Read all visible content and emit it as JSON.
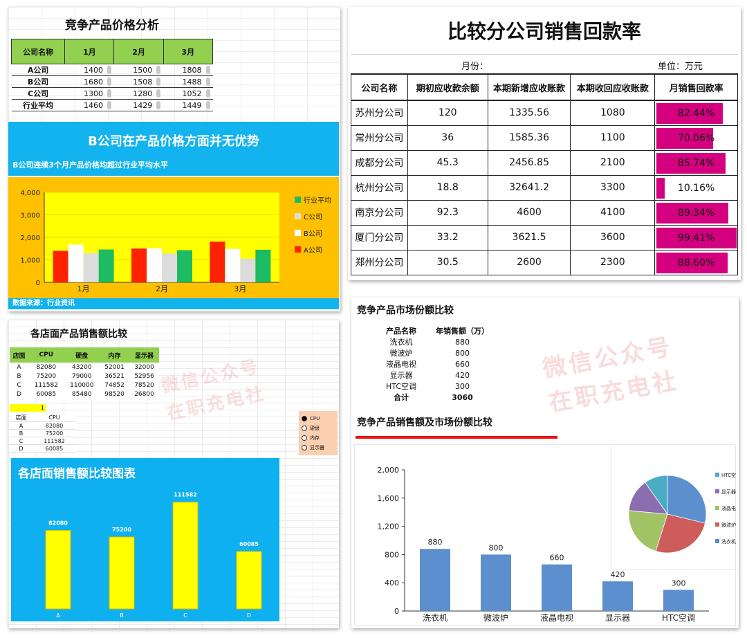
{
  "price_panel": {
    "title": "竞争产品价格分析",
    "headers": [
      "公司名称",
      "1月",
      "2月",
      "3月"
    ],
    "rows": [
      {
        "name": "A公司",
        "values": [
          "1400",
          "1500",
          "1808"
        ]
      },
      {
        "name": "B公司",
        "values": [
          "1680",
          "1508",
          "1488"
        ]
      },
      {
        "name": "C公司",
        "values": [
          "1300",
          "1280",
          "1052"
        ]
      },
      {
        "name": "行业平均",
        "values": [
          "1460",
          "1429",
          "1449"
        ]
      }
    ],
    "banner_title": "B公司在产品价格方面并无优势",
    "banner_sub": "B公司连续3个月产品价格均超过行业平均水平",
    "source": "数据来源：行业资讯",
    "colors": {
      "A公司": "#ff2200",
      "B公司": "#ffffff",
      "C公司": "#dcdcdc",
      "行业平均": "#1dbb62",
      "plot_bg": "#ffff00",
      "chart_bg": "#ffc000",
      "banner": "#12b3ef"
    }
  },
  "rate_panel": {
    "title": "比较分公司销售回款率",
    "month_label": "月份：",
    "unit_label": "单位：万元",
    "headers": [
      "公司名称",
      "期初应收款余额",
      "本期新增应收账款",
      "本期收回应收账款",
      "月销售回款率"
    ],
    "rows": [
      {
        "name": "苏州分公司",
        "opening": "120",
        "new": "1335.56",
        "collected": "1080",
        "rate_text": "82.44%",
        "rate": 0.8244
      },
      {
        "name": "常州分公司",
        "opening": "36",
        "new": "1585.36",
        "collected": "1100",
        "rate_text": "70.06%",
        "rate": 0.7006
      },
      {
        "name": "成都分公司",
        "opening": "45.3",
        "new": "2456.85",
        "collected": "2100",
        "rate_text": "85.74%",
        "rate": 0.8574
      },
      {
        "name": "杭州分公司",
        "opening": "18.8",
        "new": "32641.2",
        "collected": "3300",
        "rate_text": "10.16%",
        "rate": 0.1016
      },
      {
        "name": "南京分公司",
        "opening": "92.3",
        "new": "4600",
        "collected": "4100",
        "rate_text": "89.34%",
        "rate": 0.8934
      },
      {
        "name": "厦门分公司",
        "opening": "33.2",
        "new": "3621.5",
        "collected": "3600",
        "rate_text": "99.41%",
        "rate": 0.9941
      },
      {
        "name": "郑州分公司",
        "opening": "30.5",
        "new": "2600",
        "collected": "2300",
        "rate_text": "88.60%",
        "rate": 0.886
      }
    ],
    "bar_color": "#d4007f"
  },
  "store_panel": {
    "title": "各店面产品销售额比较",
    "headers": [
      "店面",
      "CPU",
      "硬盘",
      "内存",
      "显示器"
    ],
    "rows": [
      [
        "A",
        "82080",
        "43200",
        "52001",
        "32000"
      ],
      [
        "B",
        "75200",
        "79000",
        "36521",
        "52956"
      ],
      [
        "C",
        "111582",
        "110000",
        "74852",
        "78520"
      ],
      [
        "D",
        "60085",
        "85480",
        "98520",
        "26800"
      ]
    ],
    "selected_index": "1",
    "sub_headers": [
      "店面",
      "CPU"
    ],
    "sub_rows": [
      [
        "A",
        "82080"
      ],
      [
        "B",
        "75200"
      ],
      [
        "C",
        "111582"
      ],
      [
        "D",
        "60085"
      ]
    ],
    "options": [
      "CPU",
      "硬盘",
      "内存",
      "显示器"
    ],
    "selected_option": "CPU",
    "chart_title": "各店面销售额比较图表",
    "watermark": [
      "微信公众号",
      "在职充电社"
    ]
  },
  "share_panel": {
    "title": "竞争产品市场份额比较",
    "headers": [
      "产品名称",
      "年销售额（万）"
    ],
    "rows": [
      [
        "洗衣机",
        "880"
      ],
      [
        "微波炉",
        "800"
      ],
      [
        "液晶电视",
        "660"
      ],
      [
        "显示器",
        "420"
      ],
      [
        "HTC空调",
        "300"
      ]
    ],
    "total": [
      "合计",
      "3060"
    ],
    "chart_title": "竞争产品销售额及市场份额比较",
    "watermark": [
      "微信公众号",
      "在职充电社"
    ],
    "pie_legend": [
      "HTC空",
      "显示器",
      "液晶电",
      "微波炉",
      "洗衣机"
    ],
    "pie_colors": {
      "洗衣机": "#5b8fce",
      "微波炉": "#cd5c5a",
      "液晶电视": "#a2c266",
      "显示器": "#8a6eb0",
      "HTC空调": "#4bacc6"
    },
    "bar_color": "#5b8fce"
  },
  "chart_data": [
    {
      "type": "bar",
      "categories": [
        "1月",
        "2月",
        "3月"
      ],
      "series": [
        {
          "name": "A公司",
          "values": [
            1400,
            1500,
            1808
          ]
        },
        {
          "name": "B公司",
          "values": [
            1680,
            1508,
            1488
          ]
        },
        {
          "name": "C公司",
          "values": [
            1300,
            1280,
            1052
          ]
        },
        {
          "name": "行业平均",
          "values": [
            1460,
            1429,
            1449
          ]
        }
      ],
      "yticks": [
        "0",
        "1,000",
        "2,000",
        "3,000",
        "4,000"
      ],
      "ylim": [
        0,
        4000
      ],
      "legend": "right"
    },
    {
      "type": "bar",
      "categories": [
        "A",
        "B",
        "C",
        "D"
      ],
      "values": [
        82080,
        75200,
        111582,
        60085
      ],
      "labels": [
        "82080",
        "75200",
        "111582",
        "60085"
      ],
      "ylim": [
        0,
        120000
      ]
    },
    {
      "type": "bar",
      "categories": [
        "洗衣机",
        "微波炉",
        "液晶电视",
        "显示器",
        "HTC空调"
      ],
      "values": [
        880,
        800,
        660,
        420,
        300
      ],
      "labels": [
        "880",
        "800",
        "660",
        "420",
        "300"
      ],
      "yticks": [
        "0",
        "400",
        "800",
        "1,200",
        "1,600",
        "2,000"
      ],
      "ylim": [
        0,
        2000
      ]
    },
    {
      "type": "pie",
      "categories": [
        "洗衣机",
        "微波炉",
        "液晶电视",
        "显示器",
        "HTC空调"
      ],
      "values": [
        880,
        800,
        660,
        420,
        300
      ],
      "legend": "right"
    }
  ]
}
